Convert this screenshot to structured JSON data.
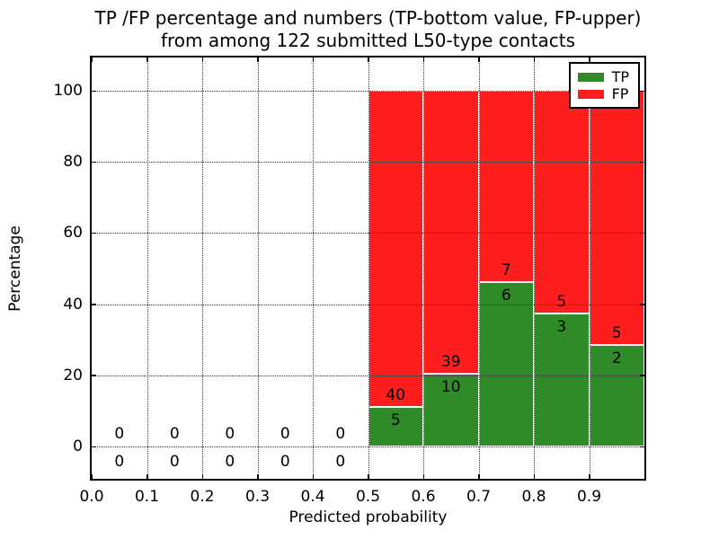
{
  "figure": {
    "title_line1": "TP /FP percentage and numbers (TP-bottom value, FP-upper)",
    "title_line2": "from among 122 submitted L50-type contacts",
    "xlabel": "Predicted probability",
    "ylabel": "Percentage"
  },
  "legend": {
    "entries": [
      {
        "label": "TP",
        "color": "#2e8b28"
      },
      {
        "label": "FP",
        "color": "#ff1e1e"
      }
    ]
  },
  "chart_data": {
    "type": "bar",
    "stacked": true,
    "title": "TP /FP percentage and numbers (TP-bottom value, FP-upper) from among 122 submitted L50-type contacts",
    "xlabel": "Predicted probability",
    "ylabel": "Percentage",
    "total_contacts": 122,
    "xlim": [
      0.0,
      1.0
    ],
    "ylim_percent": [
      -9,
      109
    ],
    "grid": true,
    "legend_position": "upper right",
    "xticks": [
      "0.0",
      "0.1",
      "0.2",
      "0.3",
      "0.4",
      "0.5",
      "0.6",
      "0.7",
      "0.8",
      "0.9"
    ],
    "xtick_values": [
      0.0,
      0.1,
      0.2,
      0.3,
      0.4,
      0.5,
      0.6,
      0.7,
      0.8,
      0.9
    ],
    "yticks": [
      0,
      20,
      40,
      60,
      80,
      100
    ],
    "bin_width": 0.1,
    "series": [
      {
        "name": "TP",
        "color": "#2e8b28",
        "position": "bottom"
      },
      {
        "name": "FP",
        "color": "#ff1e1e",
        "position": "top"
      }
    ],
    "bins": [
      {
        "start": 0.0,
        "end": 0.1,
        "tp": 0,
        "fp": 0,
        "tp_percent": 0,
        "fp_percent": 0
      },
      {
        "start": 0.1,
        "end": 0.2,
        "tp": 0,
        "fp": 0,
        "tp_percent": 0,
        "fp_percent": 0
      },
      {
        "start": 0.2,
        "end": 0.3,
        "tp": 0,
        "fp": 0,
        "tp_percent": 0,
        "fp_percent": 0
      },
      {
        "start": 0.3,
        "end": 0.4,
        "tp": 0,
        "fp": 0,
        "tp_percent": 0,
        "fp_percent": 0
      },
      {
        "start": 0.4,
        "end": 0.5,
        "tp": 0,
        "fp": 0,
        "tp_percent": 0,
        "fp_percent": 0
      },
      {
        "start": 0.5,
        "end": 0.6,
        "tp": 5,
        "fp": 40,
        "tp_percent": 11.11,
        "fp_percent": 88.89
      },
      {
        "start": 0.6,
        "end": 0.7,
        "tp": 10,
        "fp": 39,
        "tp_percent": 20.41,
        "fp_percent": 79.59
      },
      {
        "start": 0.7,
        "end": 0.8,
        "tp": 6,
        "fp": 7,
        "tp_percent": 46.15,
        "fp_percent": 53.85
      },
      {
        "start": 0.8,
        "end": 0.9,
        "tp": 3,
        "fp": 5,
        "tp_percent": 37.5,
        "fp_percent": 62.5
      },
      {
        "start": 0.9,
        "end": 1.0,
        "tp": 2,
        "fp": 5,
        "tp_percent": 28.57,
        "fp_percent": 71.43
      }
    ]
  }
}
